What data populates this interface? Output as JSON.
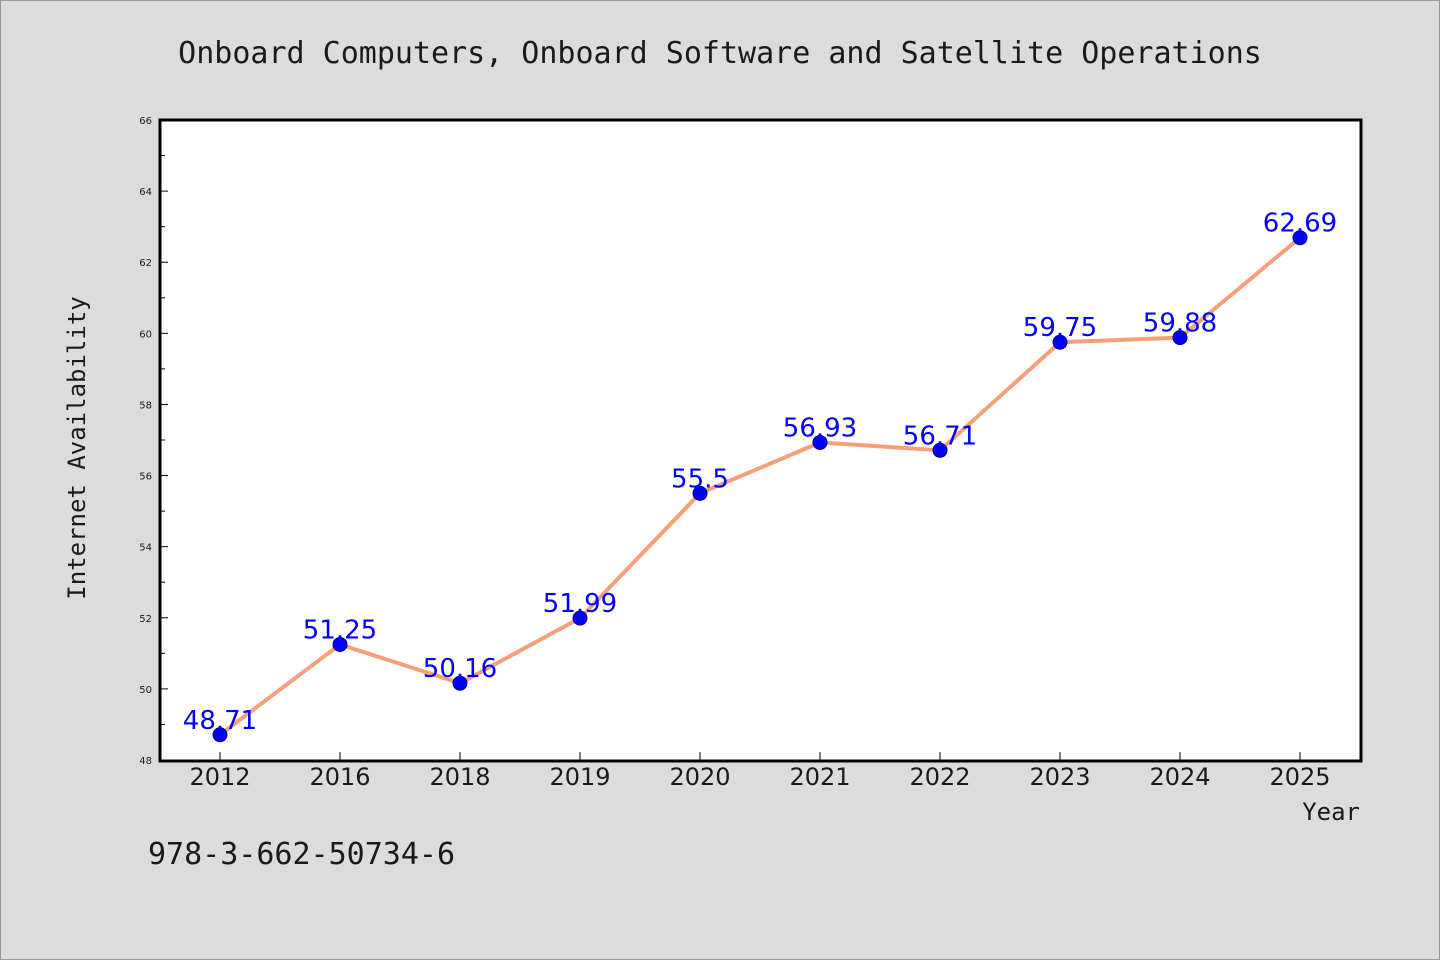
{
  "footnote": "978-3-662-50734-6",
  "colors": {
    "background": "#dcdcdc",
    "plot_background": "#ffffff",
    "line": "#f4a07a",
    "marker": "#0000ff",
    "data_label": "#0000ff",
    "axis": "#000000"
  },
  "chart_data": {
    "type": "line",
    "title": "Onboard Computers, Onboard Software and Satellite Operations",
    "xlabel": "Year",
    "ylabel": "Internet Availability",
    "categories": [
      "2012",
      "2016",
      "2018",
      "2019",
      "2020",
      "2021",
      "2022",
      "2023",
      "2024",
      "2025"
    ],
    "series": [
      {
        "values": [
          48.71,
          51.25,
          50.16,
          51.99,
          55.5,
          56.93,
          56.71,
          59.75,
          59.88,
          62.69
        ],
        "data_labels": [
          "48.71",
          "51.25",
          "50.16",
          "51.99",
          "55.5",
          "56.93",
          "56.71",
          "59.75",
          "59.88",
          "62.69"
        ]
      }
    ],
    "ylim": [
      48,
      66
    ],
    "yticks": [
      48,
      50,
      52,
      54,
      56,
      58,
      60,
      62,
      64,
      66
    ],
    "grid": false,
    "legend": "none"
  }
}
